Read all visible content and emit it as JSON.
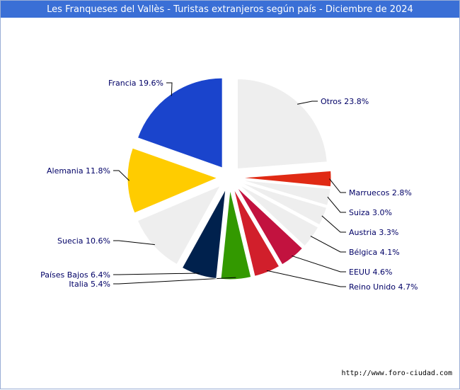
{
  "title": "Les Franqueses del Vallès - Turistas extranjeros según país - Diciembre de 2024",
  "source": "http://www.foro-ciudad.com",
  "chart_data": {
    "type": "pie",
    "title": "Les Franqueses del Vallès - Turistas extranjeros según país - Diciembre de 2024",
    "slices": [
      {
        "label": "Otros",
        "value": 23.8,
        "display": "Otros 23.8%",
        "color": "#eeeeee"
      },
      {
        "label": "Marruecos",
        "value": 2.8,
        "display": "Marruecos 2.8%",
        "color": "#e02a14"
      },
      {
        "label": "Suiza",
        "value": 3.0,
        "display": "Suiza 3.0%",
        "color": "#eeeeee"
      },
      {
        "label": "Austria",
        "value": 3.3,
        "display": "Austria 3.3%",
        "color": "#eeeeee"
      },
      {
        "label": "Bélgica",
        "value": 4.1,
        "display": "Bélgica 4.1%",
        "color": "#eeeeee"
      },
      {
        "label": "EEUU",
        "value": 4.6,
        "display": "EEUU 4.6%",
        "color": "#c2123f"
      },
      {
        "label": "Reino Unido",
        "value": 4.7,
        "display": "Reino Unido 4.7%",
        "color": "#d11f2b"
      },
      {
        "label": "Italia",
        "value": 5.4,
        "display": "Italia 5.4%",
        "color": "#339900"
      },
      {
        "label": "Países Bajos",
        "value": 6.4,
        "display": "Países Bajos 6.4%",
        "color": "#00214d"
      },
      {
        "label": "Suecia",
        "value": 10.6,
        "display": "Suecia 10.6%",
        "color": "#eeeeee"
      },
      {
        "label": "Alemania",
        "value": 11.8,
        "display": "Alemania 11.8%",
        "color": "#ffcc00"
      },
      {
        "label": "Francia",
        "value": 19.6,
        "display": "Francia 19.6%",
        "color": "#1a44cc"
      }
    ],
    "label_color": "#000066",
    "leader_color": "#000000"
  }
}
